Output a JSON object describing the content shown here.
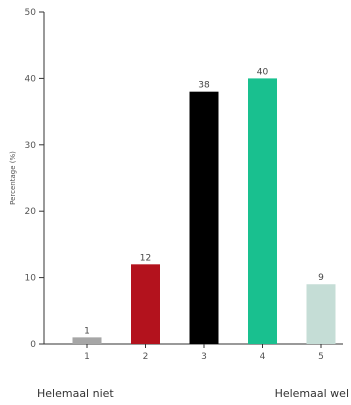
{
  "chart_data": {
    "type": "bar",
    "categories": [
      "1",
      "2",
      "3",
      "4",
      "5"
    ],
    "values": [
      1,
      12,
      38,
      40,
      9
    ],
    "colors": [
      "#a6a6a6",
      "#b3121d",
      "#000000",
      "#19c08f",
      "#c5ddd6"
    ],
    "ylabel": "Percentage (%)",
    "xlabel": "",
    "ylim": [
      0,
      50
    ],
    "yticks": [
      0,
      10,
      20,
      30,
      40,
      50
    ],
    "grid": false,
    "legend": "none",
    "data_labels": [
      "1",
      "12",
      "38",
      "40",
      "9"
    ],
    "scale_end_labels": {
      "left": "Helemaal niet",
      "right": "Helemaal wel"
    }
  }
}
